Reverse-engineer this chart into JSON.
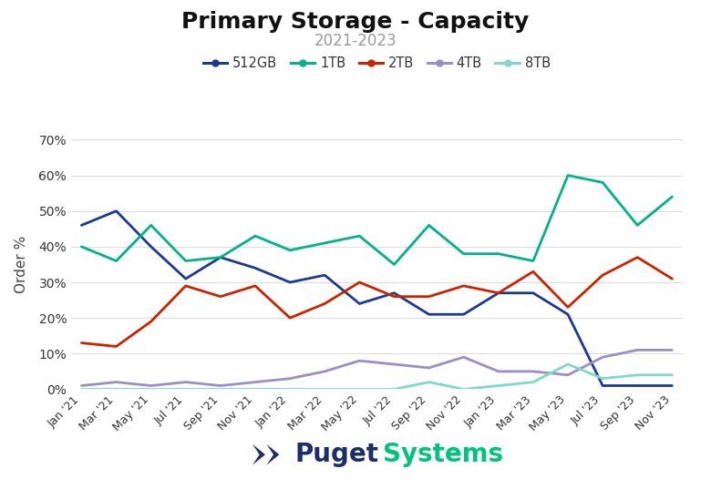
{
  "title": "Primary Storage - Capacity",
  "subtitle": "2021-2023",
  "ylabel": "Order %",
  "title_fontsize": 18,
  "subtitle_fontsize": 12,
  "ylabel_fontsize": 11,
  "tick_labels": [
    "Jan '21",
    "Mar '21",
    "May '21",
    "Jul '21",
    "Sep '21",
    "Nov '21",
    "Jan '22",
    "Mar '22",
    "May '22",
    "Jul '22",
    "Sep '22",
    "Nov '22",
    "Jan '23",
    "Mar '23",
    "May '23",
    "Jul '23",
    "Sep '23",
    "Nov '23"
  ],
  "series": {
    "512GB": {
      "color": "#1a3a8f",
      "linewidth": 2.0,
      "values": [
        46,
        50,
        40,
        31,
        37,
        34,
        30,
        32,
        24,
        27,
        21,
        21,
        27,
        27,
        21,
        1,
        1,
        1
      ]
    },
    "1TB": {
      "color": "#00b386",
      "linewidth": 2.0,
      "values": [
        40,
        36,
        46,
        36,
        37,
        43,
        39,
        41,
        43,
        35,
        46,
        38,
        38,
        36,
        60,
        58,
        46,
        54
      ]
    },
    "2TB": {
      "color": "#cc2200",
      "linewidth": 2.0,
      "values": [
        13,
        12,
        19,
        29,
        26,
        29,
        20,
        24,
        30,
        26,
        26,
        29,
        27,
        33,
        23,
        32,
        37,
        31
      ]
    },
    "4TB": {
      "color": "#9b8ec4",
      "linewidth": 2.0,
      "values": [
        1,
        2,
        1,
        2,
        1,
        2,
        3,
        5,
        8,
        7,
        6,
        9,
        5,
        5,
        4,
        9,
        11,
        11
      ]
    },
    "8TB": {
      "color": "#7fd8c8",
      "linewidth": 2.0,
      "values": [
        0,
        0,
        0,
        0,
        0,
        0,
        0,
        0,
        0,
        0,
        2,
        0,
        1,
        2,
        7,
        3,
        4,
        4
      ]
    }
  },
  "ylim": [
    0,
    70
  ],
  "yticks": [
    0,
    10,
    20,
    30,
    40,
    50,
    60,
    70
  ],
  "background_color": "#ffffff",
  "grid_color": "#dddddd",
  "legend_order": [
    "512GB",
    "1TB",
    "2TB",
    "4TB",
    "8TB"
  ],
  "puget_dark": "#1a2e6b",
  "puget_green": "#00c47c"
}
